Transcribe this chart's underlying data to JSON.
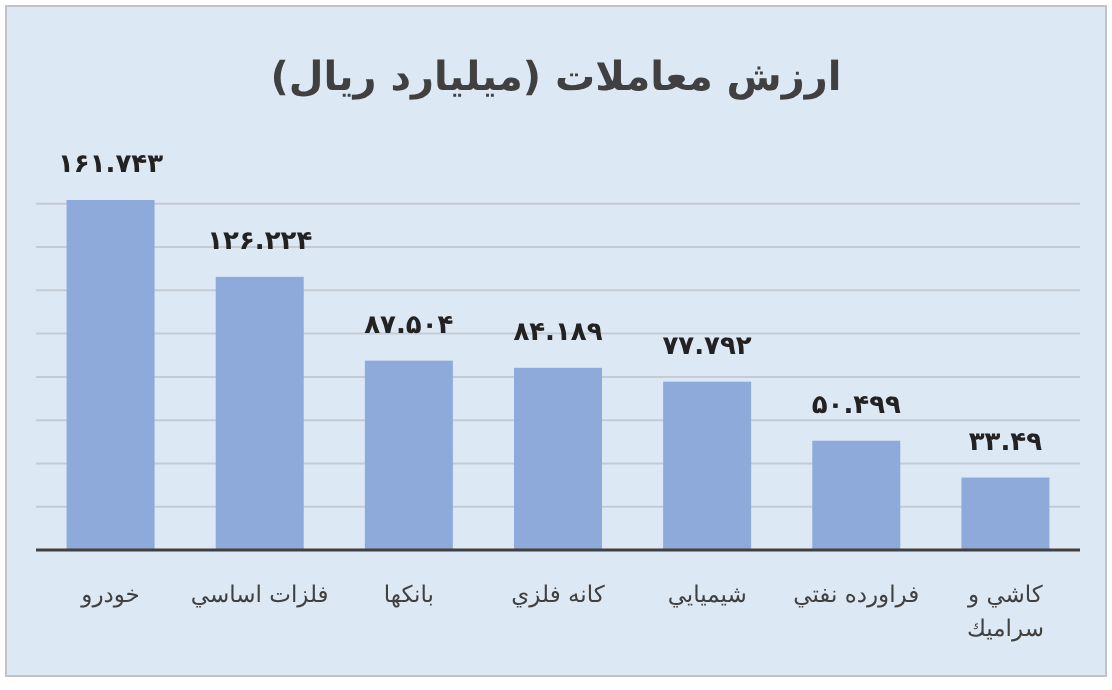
{
  "chart_data": {
    "type": "bar",
    "title": "ارزش معاملات  (ميليارد ريال)",
    "categories": [
      "خودرو",
      "فلزات اساسي",
      "بانكها",
      "كانه فلزي",
      "شيميايي",
      "فراورده نفتي",
      "كاشي و سراميك"
    ],
    "values": [
      161.743,
      126.224,
      87.504,
      84.189,
      77.792,
      50.499,
      33.49
    ],
    "value_labels": [
      "۱۶۱.۷۴۳",
      "۱۲۶.۲۲۴",
      "۸۷.۵۰۴",
      "۸۴.۱۸۹",
      "۷۷.۷۹۲",
      "۵۰.۴۹۹",
      "۳۳.۴۹"
    ],
    "color": "#8eaadb",
    "yticks": [
      {
        "value": 0,
        "label": null
      },
      {
        "value": 20,
        "label": null
      },
      {
        "value": 40,
        "label": null
      },
      {
        "value": 60,
        "label": null
      },
      {
        "value": 80,
        "label": null
      },
      {
        "value": 100,
        "label": null
      },
      {
        "value": 120,
        "label": null
      },
      {
        "value": 140,
        "label": null
      },
      {
        "value": 160,
        "label": null
      }
    ],
    "tick_labels": "x",
    "grid": "y"
  }
}
